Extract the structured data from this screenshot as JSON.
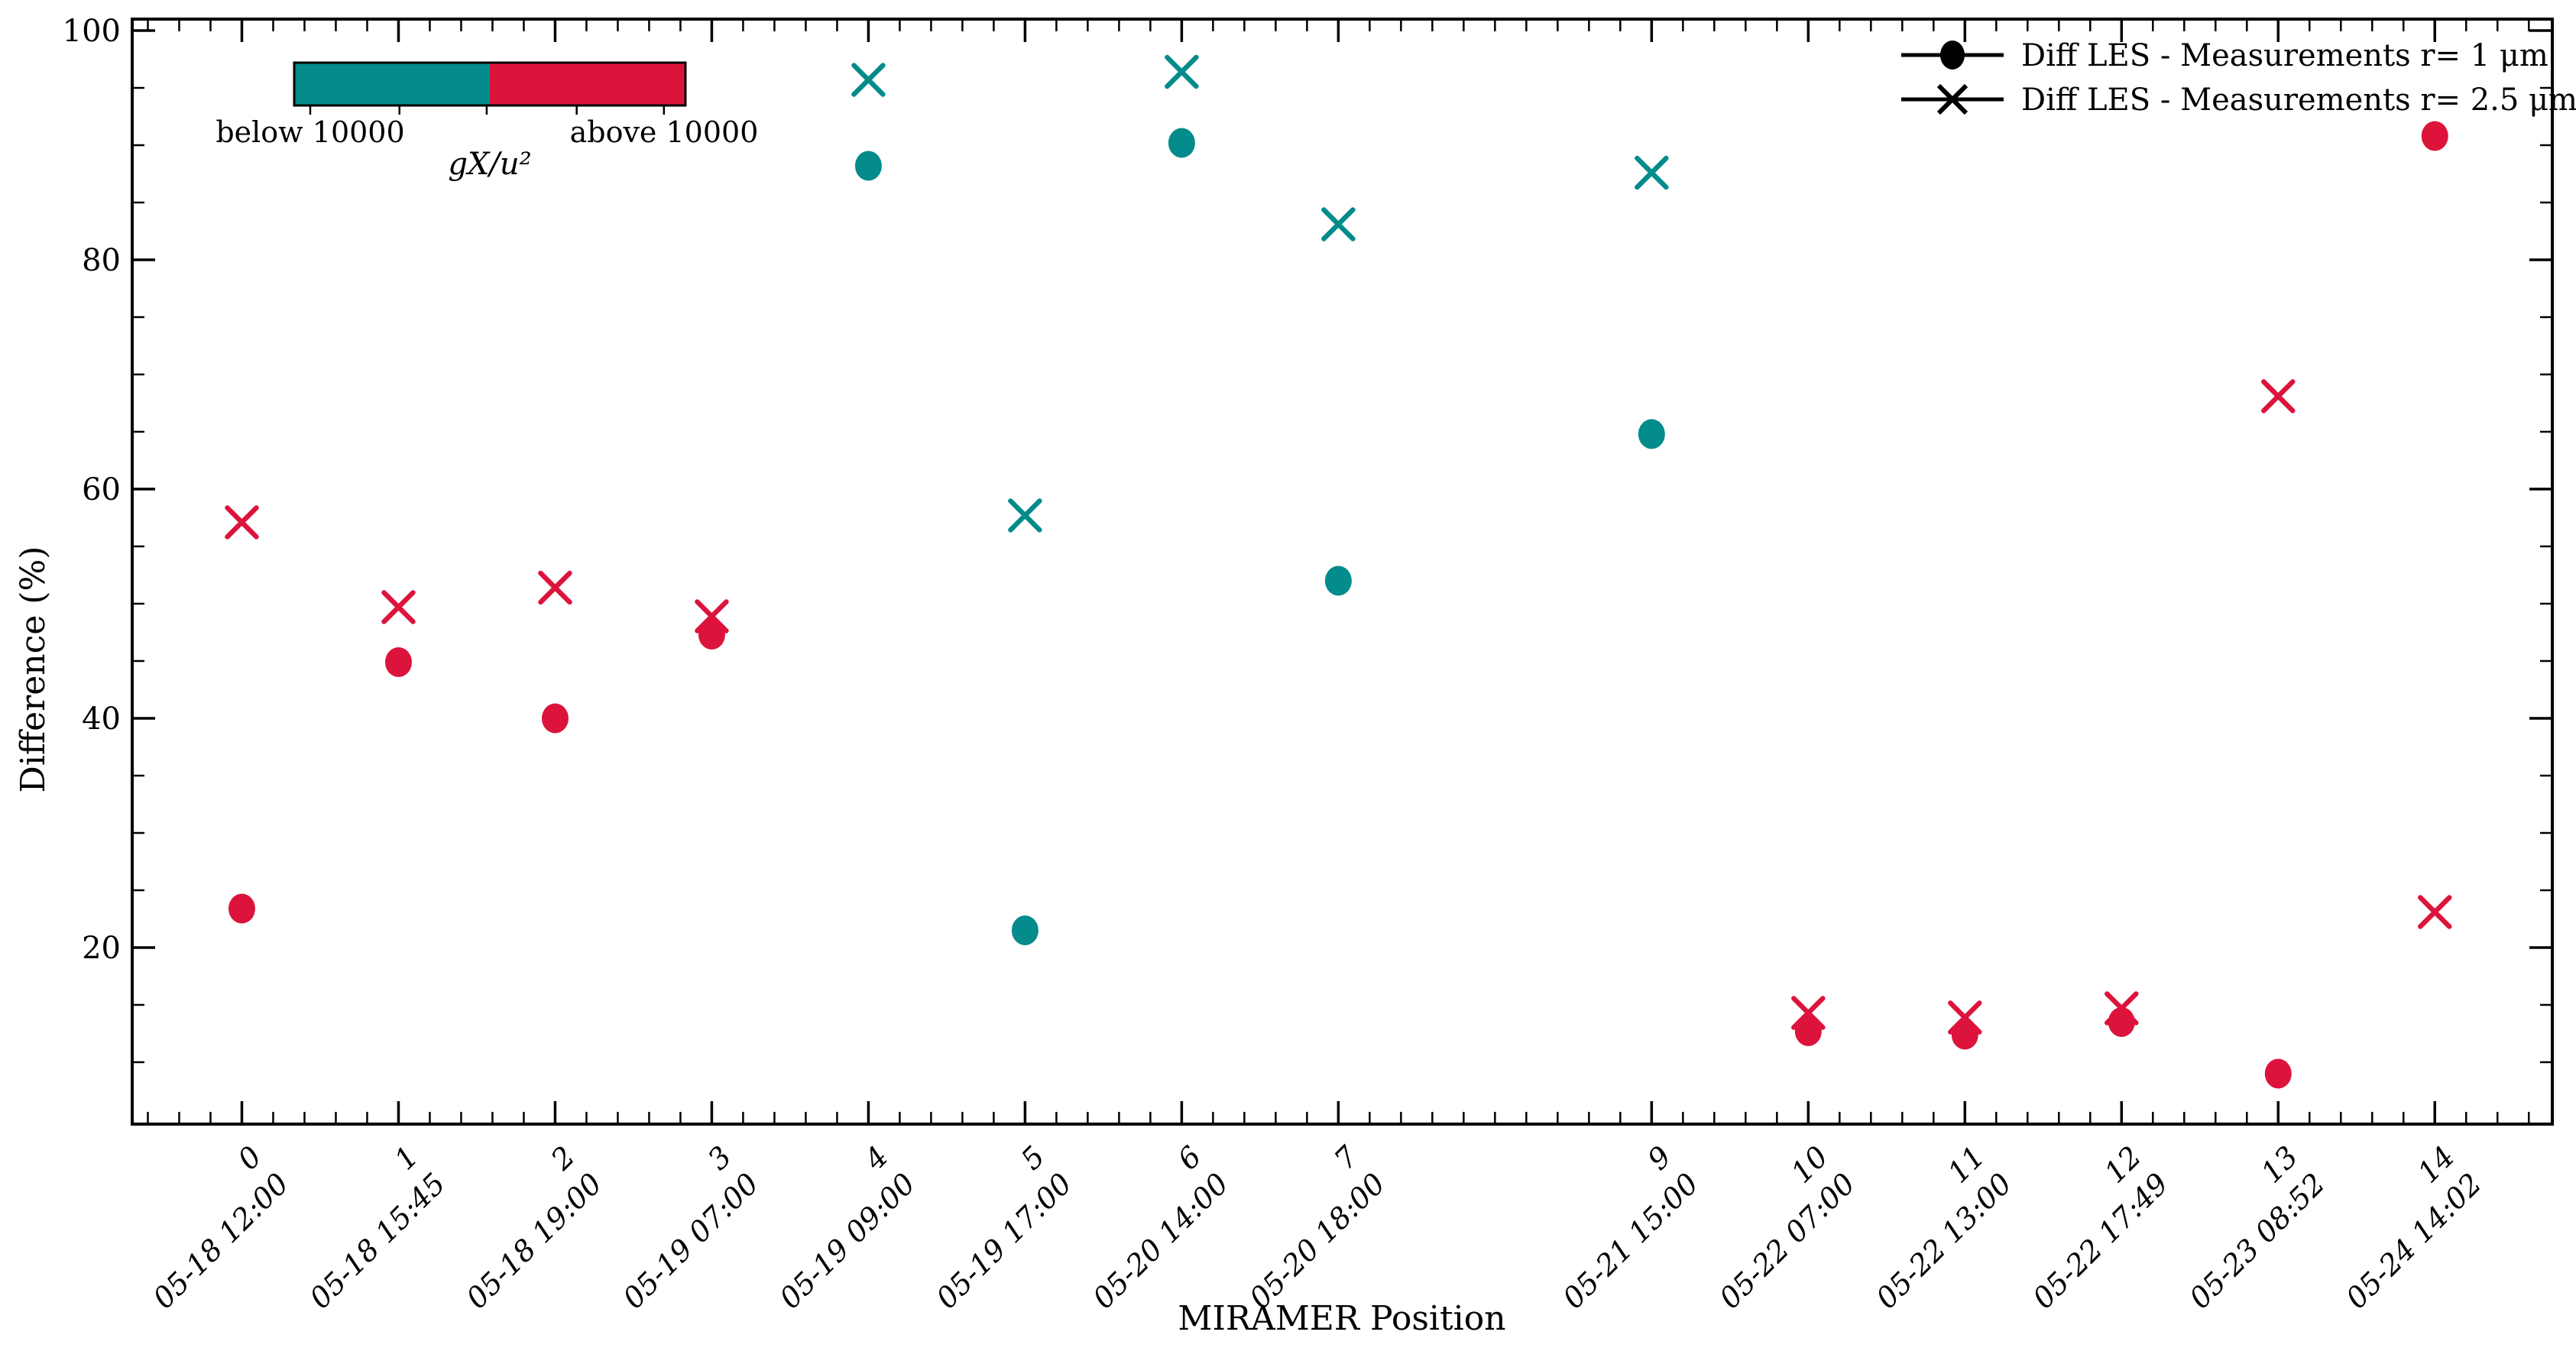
{
  "chart_data": {
    "type": "scatter",
    "xlabel": "MIRAMER Position",
    "ylabel": "Difference (%)",
    "xlim": [
      -0.7,
      14.75
    ],
    "ylim": [
      4.6,
      101
    ],
    "yticks": [
      20,
      40,
      60,
      80,
      100
    ],
    "y_minor_step": 5,
    "x_minor_step": 0.2,
    "grid": false,
    "legend_position": "upper right",
    "series": [
      {
        "name": "Diff LES - Measurements r= 1 μm",
        "marker": "circle"
      },
      {
        "name": "Diff LES - Measurements r= 2.5 μm",
        "marker": "x"
      }
    ],
    "points": [
      {
        "position": 0,
        "label_index": "0",
        "label_time": "05-18 12:00",
        "regime": "above",
        "r1": 23.4,
        "r25": 57.1
      },
      {
        "position": 1,
        "label_index": "1",
        "label_time": "05-18 15:45",
        "regime": "above",
        "r1": 44.9,
        "r25": 49.7
      },
      {
        "position": 2,
        "label_index": "2",
        "label_time": "05-18 19:00",
        "regime": "above",
        "r1": 40.0,
        "r25": 51.4
      },
      {
        "position": 3,
        "label_index": "3",
        "label_time": "05-19 07:00",
        "regime": "above",
        "r1": 47.3,
        "r25": 48.9
      },
      {
        "position": 4,
        "label_index": "4",
        "label_time": "05-19 09:00",
        "regime": "below",
        "r1": 88.2,
        "r25": 95.7
      },
      {
        "position": 5,
        "label_index": "5",
        "label_time": "05-19 17:00",
        "regime": "below",
        "r1": 21.5,
        "r25": 57.7
      },
      {
        "position": 6,
        "label_index": "6",
        "label_time": "05-20 14:00",
        "regime": "below",
        "r1": 90.2,
        "r25": 96.4
      },
      {
        "position": 7,
        "label_index": "7",
        "label_time": "05-20 18:00",
        "regime": "below",
        "r1": 52.0,
        "r25": 83.1
      },
      {
        "position": 9,
        "label_index": "9",
        "label_time": "05-21 15:00",
        "regime": "below",
        "r1": 64.8,
        "r25": 87.6
      },
      {
        "position": 10,
        "label_index": "10",
        "label_time": "05-22 07:00",
        "regime": "above",
        "r1": 12.7,
        "r25": 14.3
      },
      {
        "position": 11,
        "label_index": "11",
        "label_time": "05-22 13:00",
        "regime": "above",
        "r1": 12.4,
        "r25": 13.9
      },
      {
        "position": 12,
        "label_index": "12",
        "label_time": "05-22 17:49",
        "regime": "above",
        "r1": 13.5,
        "r25": 14.7
      },
      {
        "position": 13,
        "label_index": "13",
        "label_time": "05-23 08:52",
        "regime": "above",
        "r1": 9.0,
        "r25": 68.1
      },
      {
        "position": 14,
        "label_index": "14",
        "label_time": "05-24 14:02",
        "regime": "above",
        "r1": 90.8,
        "r25": 23.1
      }
    ],
    "colors": {
      "below_10000": "#048B8B",
      "above_10000": "#DC143C",
      "axis": "#000000"
    },
    "colorbar": {
      "label_below": "below 10000",
      "label_above": "above 10000",
      "title": "gX/u²"
    }
  }
}
